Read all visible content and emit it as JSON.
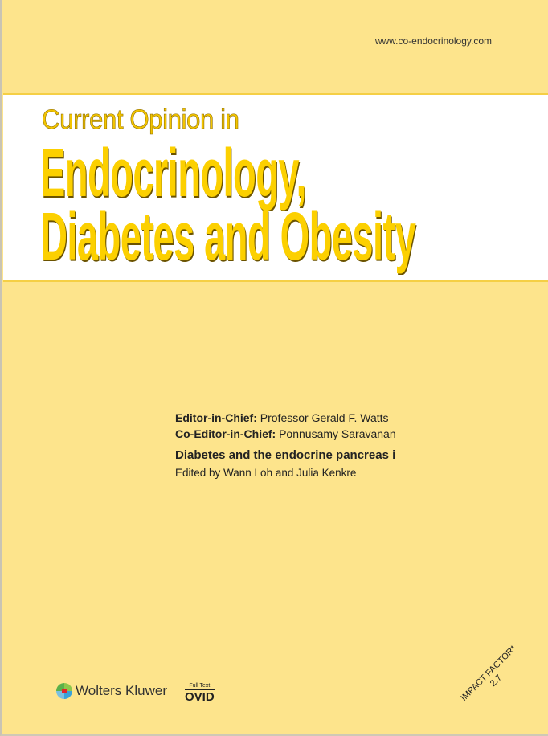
{
  "url": "www.co-endocrinology.com",
  "journal": {
    "prefix": "Current Opinion in",
    "title_line1": "Endocrinology,",
    "title_line2": "Diabetes and Obesity"
  },
  "editors": {
    "chief_label": "Editor-in-Chief:",
    "chief_name": "Professor Gerald F. Watts",
    "co_label": "Co-Editor-in-Chief:",
    "co_name": "Ponnusamy Saravanan"
  },
  "issue": {
    "topic": "Diabetes and the endocrine pancreas i",
    "edited_by": "Edited by Wann Loh  and Julia Kenkre"
  },
  "publisher": {
    "name": "Wolters Kluwer",
    "ovid_top": "Full Text",
    "ovid_name": "OVID"
  },
  "impact_factor": {
    "label": "IMPACT FACTOR*",
    "value": "2.7"
  },
  "colors": {
    "background": "#fde48c",
    "title": "#fcd000"
  }
}
